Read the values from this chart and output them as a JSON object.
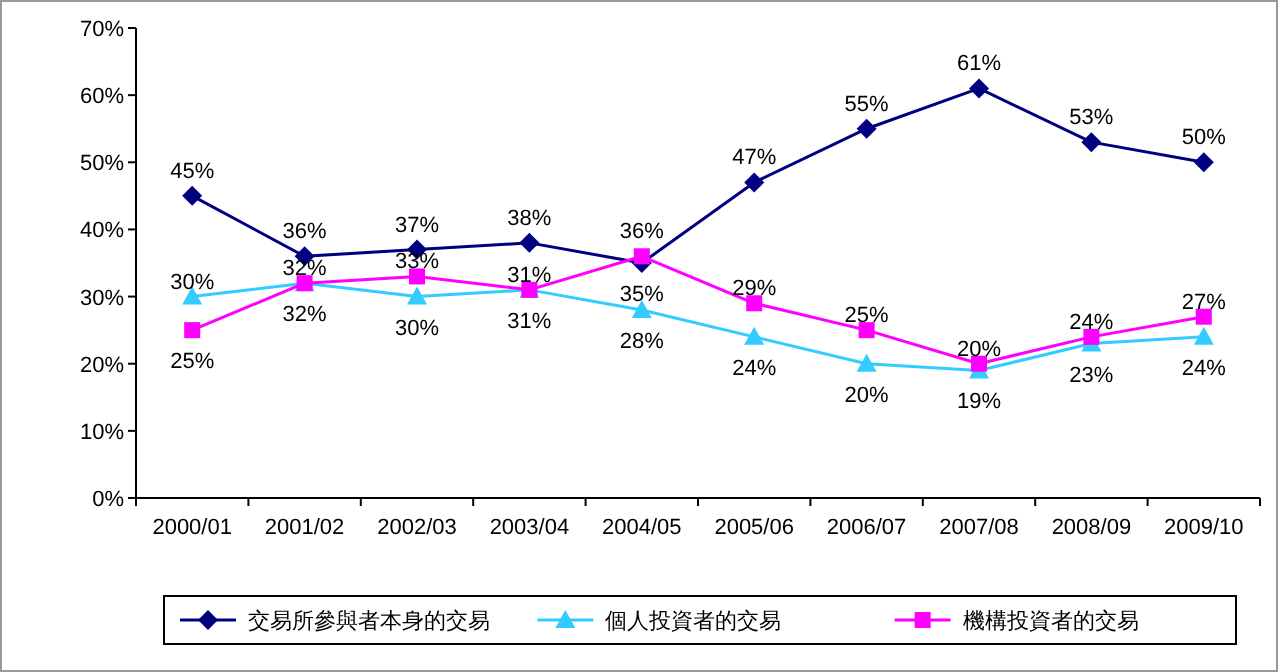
{
  "chart_data": {
    "type": "line",
    "categories": [
      "2000/01",
      "2001/02",
      "2002/03",
      "2003/04",
      "2004/05",
      "2005/06",
      "2006/07",
      "2007/08",
      "2008/09",
      "2009/10"
    ],
    "ylim": [
      0,
      70
    ],
    "yticks": [
      {
        "value": 0,
        "label": "0%"
      },
      {
        "value": 10,
        "label": "10%"
      },
      {
        "value": 20,
        "label": "20%"
      },
      {
        "value": 30,
        "label": "30%"
      },
      {
        "value": 40,
        "label": "40%"
      },
      {
        "value": 50,
        "label": "50%"
      },
      {
        "value": 60,
        "label": "60%"
      },
      {
        "value": 70,
        "label": "70%"
      }
    ],
    "legend": "bottom",
    "series": [
      {
        "name": "交易所參與者本身的交易",
        "color": "#000080",
        "marker": "diamond",
        "values": [
          45,
          36,
          37,
          38,
          35,
          47,
          55,
          61,
          53,
          50
        ],
        "value_labels": [
          "45%",
          "36%",
          "37%",
          "38%",
          "35%",
          "47%",
          "55%",
          "61%",
          "53%",
          "50%"
        ]
      },
      {
        "name": "個人投資者的交易",
        "color": "#33ccff",
        "marker": "triangle",
        "values": [
          30,
          32,
          30,
          31,
          28,
          24,
          20,
          19,
          23,
          24
        ],
        "value_labels": [
          "30%",
          "32%",
          "30%",
          "31%",
          "28%",
          "24%",
          "20%",
          "19%",
          "23%",
          "24%"
        ]
      },
      {
        "name": "機構投資者的交易",
        "color": "#ff00ff",
        "marker": "square",
        "values": [
          25,
          32,
          33,
          31,
          36,
          29,
          25,
          20,
          24,
          27
        ],
        "value_labels": [
          "25%",
          "32%",
          "33%",
          "31%",
          "36%",
          "29%",
          "25%",
          "20%",
          "24%",
          "27%"
        ]
      }
    ]
  }
}
